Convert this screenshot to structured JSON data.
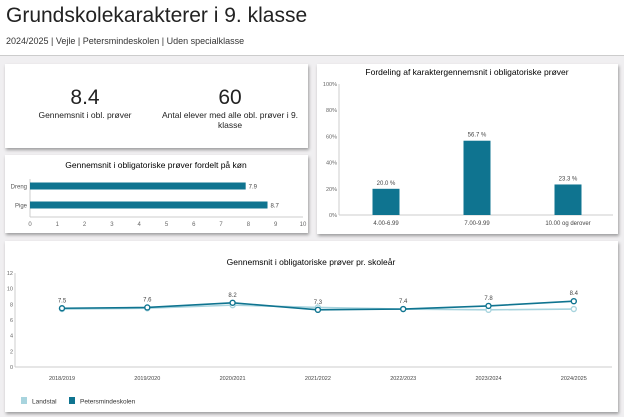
{
  "header": {
    "title": "Grundskolekarakterer i 9. klasse",
    "subtitle": "2024/2025 | Vejle | Petersmindeskolen | Uden specialklasse"
  },
  "kpis": [
    {
      "value": "8.4",
      "label": "Gennemsnit i obl. prøver"
    },
    {
      "value": "60",
      "label": "Antal elever med alle obl. prøver i 9. klasse"
    }
  ],
  "colors": {
    "school": "#0f7490",
    "landstal": "#a8d4de"
  },
  "chart_data": [
    {
      "type": "bar",
      "orientation": "horizontal",
      "title": "Gennemsnit i obligatoriske prøver fordelt på køn",
      "categories": [
        "Dreng",
        "Pige"
      ],
      "values": [
        7.9,
        8.7
      ],
      "labels": [
        "7.9",
        "8.7"
      ],
      "xlim": [
        0,
        10
      ],
      "xticks": [
        "0",
        "1",
        "2",
        "3",
        "4",
        "5",
        "6",
        "7",
        "8",
        "9",
        "10"
      ]
    },
    {
      "type": "bar",
      "title": "Fordeling af karaktergennemsnit i obligatoriske prøver",
      "categories": [
        "4.00-6.99",
        "7.00-9.99",
        "10.00 og derover"
      ],
      "values": [
        20.0,
        56.7,
        23.3
      ],
      "labels": [
        "20.0 %",
        "56.7 %",
        "23.3 %"
      ],
      "ylim": [
        0,
        100
      ],
      "yticks": [
        "0%",
        "20%",
        "40%",
        "60%",
        "80%",
        "100%"
      ]
    },
    {
      "type": "line",
      "title": "Gennemsnit i obligatoriske prøver pr. skoleår",
      "categories": [
        "2018/2019",
        "2019/2020",
        "2020/2021",
        "2021/2022",
        "2022/2023",
        "2023/2024",
        "2024/2025"
      ],
      "ylim": [
        0,
        12
      ],
      "yticks": [
        "0",
        "2",
        "4",
        "6",
        "8",
        "10",
        "12"
      ],
      "legend": "bottom-left",
      "series": [
        {
          "name": "Landstal",
          "values": [
            7.4,
            7.5,
            7.9,
            7.6,
            7.4,
            7.3,
            7.4
          ]
        },
        {
          "name": "Petersmindeskolen",
          "values": [
            7.5,
            7.6,
            8.2,
            7.3,
            7.4,
            7.8,
            8.4
          ],
          "labels": [
            "7.5",
            "7.6",
            "8.2",
            "7.3",
            "7.4",
            "7.8",
            "8.4"
          ]
        }
      ]
    }
  ]
}
